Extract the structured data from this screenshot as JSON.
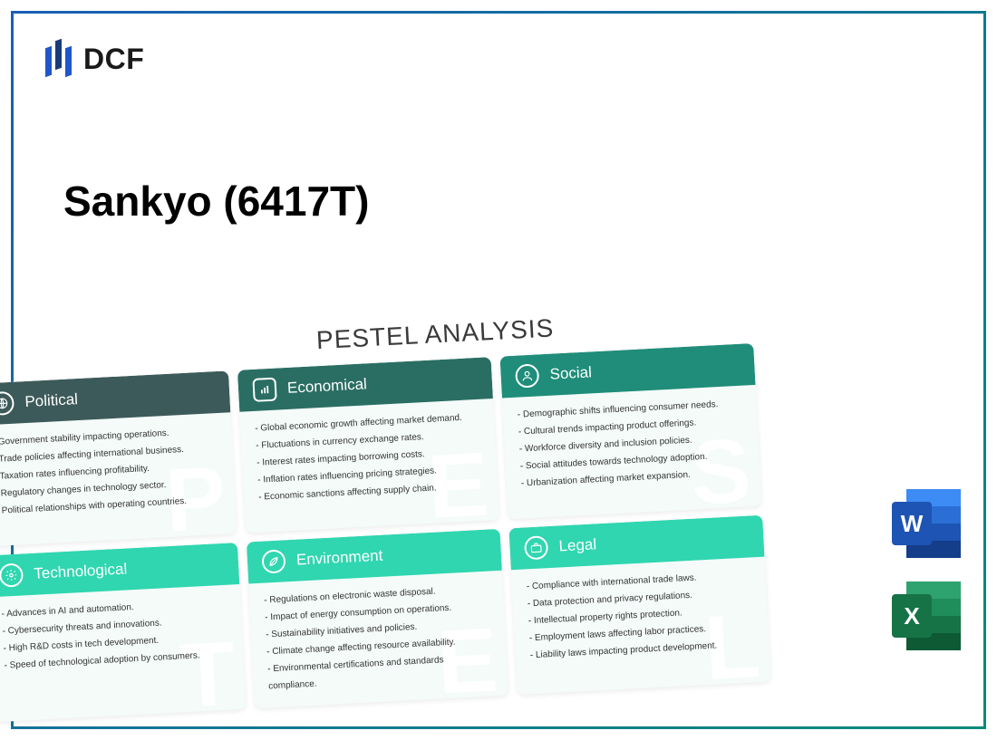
{
  "frame": {
    "gradient_from": "#1a5fb4",
    "gradient_to": "#0a8a7a"
  },
  "logo": {
    "text": "DCF",
    "bar_colors": [
      "#2156c9",
      "#1a3a7a",
      "#2156c9"
    ]
  },
  "title": "Sankyo (6417T)",
  "pestel": {
    "heading": "PESTEL ANALYSIS",
    "card_bg": "#f4fbf9",
    "top_row_color": "#2a6e63",
    "top_row_colors": [
      "#3d5a5a",
      "#2a6e63",
      "#1f8d7a"
    ],
    "bottom_row_color": "#2fd6b0",
    "watermark_color": "rgba(255,255,255,0.85)",
    "cards": [
      {
        "title": "Political",
        "letter": "P",
        "icon": "globe",
        "items": [
          "Government stability impacting operations.",
          "Trade policies affecting international business.",
          "Taxation rates influencing profitability.",
          "Regulatory changes in technology sector.",
          "Political relationships with operating countries."
        ]
      },
      {
        "title": "Economical",
        "letter": "E",
        "icon": "chart",
        "items": [
          "Global economic growth affecting market demand.",
          "Fluctuations in currency exchange rates.",
          "Interest rates impacting borrowing costs.",
          "Inflation rates influencing pricing strategies.",
          "Economic sanctions affecting supply chain."
        ]
      },
      {
        "title": "Social",
        "letter": "S",
        "icon": "person",
        "items": [
          "Demographic shifts influencing consumer needs.",
          "Cultural trends impacting product offerings.",
          "Workforce diversity and inclusion policies.",
          "Social attitudes towards technology adoption.",
          "Urbanization affecting market expansion."
        ]
      },
      {
        "title": "Technological",
        "letter": "T",
        "icon": "gear",
        "items": [
          "Advances in AI and automation.",
          "Cybersecurity threats and innovations.",
          "High R&D costs in tech development.",
          "Speed of technological adoption by consumers."
        ]
      },
      {
        "title": "Environment",
        "letter": "E",
        "icon": "leaf",
        "items": [
          "Regulations on electronic waste disposal.",
          "Impact of energy consumption on operations.",
          "Sustainability initiatives and policies.",
          "Climate change affecting resource availability.",
          "Environmental certifications and standards compliance."
        ]
      },
      {
        "title": "Legal",
        "letter": "L",
        "icon": "briefcase",
        "items": [
          "Compliance with international trade laws.",
          "Data protection and privacy regulations.",
          "Intellectual property rights protection.",
          "Employment laws affecting labor practices.",
          "Liability laws impacting product development."
        ]
      }
    ]
  },
  "doc_icons": {
    "word": {
      "letter": "W",
      "color": "#1e54b3"
    },
    "excel": {
      "letter": "X",
      "color": "#167346"
    }
  }
}
